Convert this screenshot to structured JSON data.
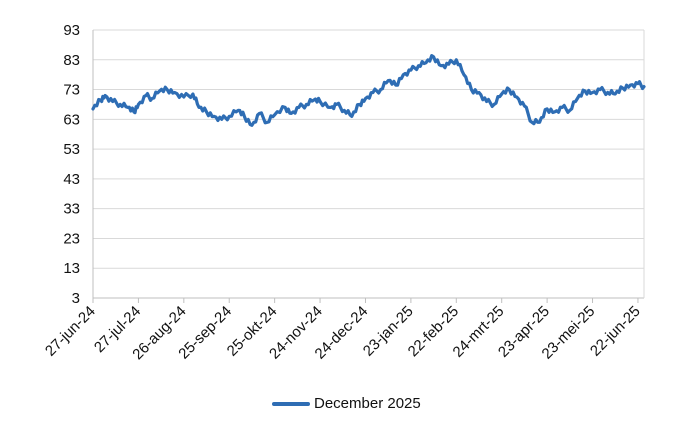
{
  "chart_data": {
    "type": "line",
    "title": "",
    "xlabel": "",
    "ylabel": "",
    "ylim": [
      3,
      93
    ],
    "yticks": [
      3,
      13,
      23,
      33,
      43,
      53,
      63,
      73,
      83,
      93
    ],
    "xticks": [
      "27-jun-24",
      "27-jul-24",
      "26-aug-24",
      "25-sep-24",
      "25-okt-24",
      "24-nov-24",
      "24-dec-24",
      "23-jan-25",
      "22-feb-25",
      "24-mrt-25",
      "23-apr-25",
      "23-mei-25",
      "22-jun-25"
    ],
    "grid": "horizontal",
    "legend_position": "bottom",
    "colors": {
      "series": "#2E6DB4",
      "grid": "#d9d9d9",
      "axis": "#bfbfbf"
    },
    "series": [
      {
        "name": "December 2025",
        "x": [
          "27-jun-24",
          "2-jul-24",
          "5-jul-24",
          "10-jul-24",
          "15-jul-24",
          "20-jul-24",
          "24-jul-24",
          "27-jul-24",
          "1-aug-24",
          "5-aug-24",
          "10-aug-24",
          "15-aug-24",
          "20-aug-24",
          "26-aug-24",
          "1-sep-24",
          "5-sep-24",
          "10-sep-24",
          "15-sep-24",
          "20-sep-24",
          "25-sep-24",
          "1-okt-24",
          "5-okt-24",
          "10-okt-24",
          "15-okt-24",
          "20-okt-24",
          "25-okt-24",
          "1-nov-24",
          "5-nov-24",
          "10-nov-24",
          "15-nov-24",
          "20-nov-24",
          "24-nov-24",
          "1-dec-24",
          "5-dec-24",
          "10-dec-24",
          "15-dec-24",
          "20-dec-24",
          "24-dec-24",
          "29-dec-24",
          "3-jan-25",
          "8-jan-25",
          "13-jan-25",
          "18-jan-25",
          "23-jan-25",
          "28-jan-25",
          "2-feb-25",
          "7-feb-25",
          "12-feb-25",
          "17-feb-25",
          "22-feb-25",
          "27-feb-25",
          "4-mrt-25",
          "9-mrt-25",
          "14-mrt-25",
          "19-mrt-25",
          "24-mrt-25",
          "29-mrt-25",
          "3-apr-25",
          "8-apr-25",
          "13-apr-25",
          "18-apr-25",
          "23-apr-25",
          "28-apr-25",
          "3-mei-25",
          "8-mei-25",
          "13-mei-25",
          "18-mei-25",
          "23-mei-25",
          "28-mei-25",
          "2-jun-25",
          "7-jun-25",
          "12-jun-25",
          "17-jun-25",
          "22-jun-25",
          "26-jun-25"
        ],
        "values": [
          66.5,
          69.5,
          71,
          69,
          68,
          67,
          65.5,
          68,
          71,
          70,
          72.5,
          73,
          72,
          70.5,
          71.5,
          67,
          65.5,
          64,
          63,
          64,
          66,
          64,
          61,
          65,
          62,
          64.5,
          67,
          65,
          67,
          68,
          69.5,
          69,
          67,
          68,
          66,
          64,
          68,
          70,
          72,
          73,
          76,
          74.5,
          78,
          79.5,
          81,
          82,
          84,
          81,
          81.5,
          83,
          78,
          73,
          72,
          69,
          68,
          71.5,
          73,
          70.5,
          67.5,
          62,
          62,
          66.5,
          65.5,
          67,
          66,
          70,
          72.5,
          72,
          73,
          72,
          71.5,
          73.5,
          74.5,
          75,
          74
        ]
      }
    ]
  }
}
